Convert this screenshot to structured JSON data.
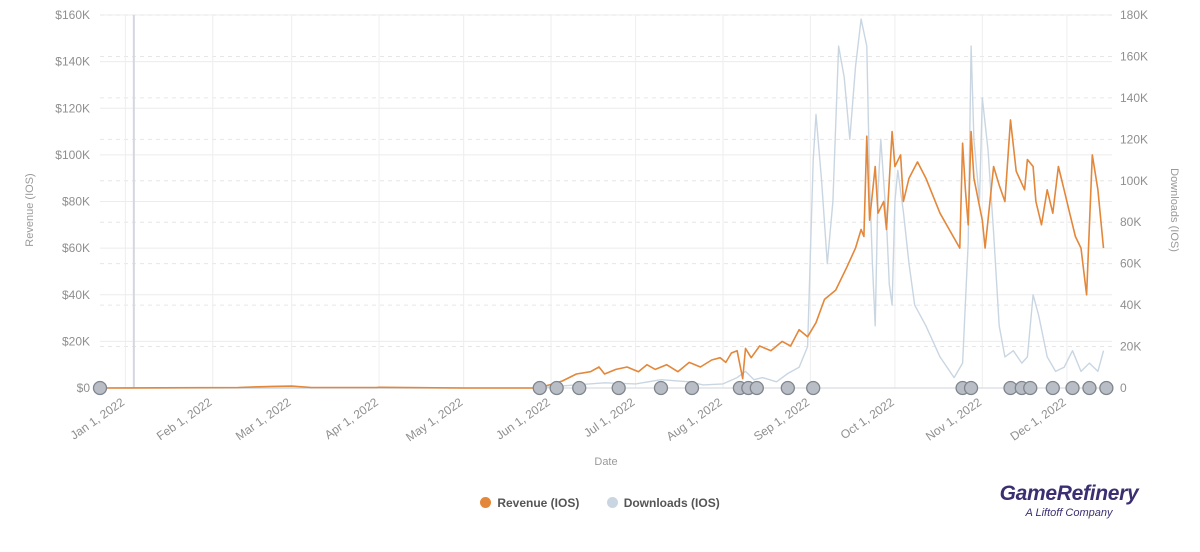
{
  "chart_data": {
    "type": "line",
    "xlabel": "Date",
    "ylabel_left": "Revenue (IOS)",
    "ylabel_right": "Downloads (IOS)",
    "x_domain": [
      "2021-12-23",
      "2022-12-17"
    ],
    "x_ticks": [
      {
        "date": "2022-01-01",
        "label": "Jan 1, 2022"
      },
      {
        "date": "2022-02-01",
        "label": "Feb 1, 2022"
      },
      {
        "date": "2022-03-01",
        "label": "Mar 1, 2022"
      },
      {
        "date": "2022-04-01",
        "label": "Apr 1, 2022"
      },
      {
        "date": "2022-05-01",
        "label": "May 1, 2022"
      },
      {
        "date": "2022-06-01",
        "label": "Jun 1, 2022"
      },
      {
        "date": "2022-07-01",
        "label": "Jul 1, 2022"
      },
      {
        "date": "2022-08-01",
        "label": "Aug 1, 2022"
      },
      {
        "date": "2022-09-01",
        "label": "Sep 1, 2022"
      },
      {
        "date": "2022-10-01",
        "label": "Oct 1, 2022"
      },
      {
        "date": "2022-11-01",
        "label": "Nov 1, 2022"
      },
      {
        "date": "2022-12-01",
        "label": "Dec 1, 2022"
      }
    ],
    "y_left": {
      "range": [
        0,
        160000
      ],
      "ticks": [
        0,
        20000,
        40000,
        60000,
        80000,
        100000,
        120000,
        140000,
        160000
      ],
      "labels": [
        "$0",
        "$20K",
        "$40K",
        "$60K",
        "$80K",
        "$100K",
        "$120K",
        "$140K",
        "$160K"
      ]
    },
    "y_right": {
      "range": [
        0,
        180000
      ],
      "ticks": [
        0,
        20000,
        40000,
        60000,
        80000,
        100000,
        120000,
        140000,
        160000,
        180000
      ],
      "labels": [
        "0",
        "20K",
        "40K",
        "60K",
        "80K",
        "100K",
        "120K",
        "140K",
        "160K",
        "180K"
      ]
    },
    "grid": true,
    "legend_position": "bottom-center",
    "series": [
      {
        "name": "Revenue (IOS)",
        "axis": "left",
        "color": "#e3873a",
        "points": [
          [
            "2021-12-23",
            0
          ],
          [
            "2022-02-10",
            200
          ],
          [
            "2022-02-22",
            700
          ],
          [
            "2022-03-01",
            800
          ],
          [
            "2022-03-08",
            200
          ],
          [
            "2022-03-31",
            200
          ],
          [
            "2022-04-01",
            300
          ],
          [
            "2022-05-01",
            0
          ],
          [
            "2022-05-27",
            0
          ],
          [
            "2022-06-01",
            1500
          ],
          [
            "2022-06-05",
            3000
          ],
          [
            "2022-06-10",
            6000
          ],
          [
            "2022-06-15",
            7000
          ],
          [
            "2022-06-18",
            9000
          ],
          [
            "2022-06-20",
            6000
          ],
          [
            "2022-06-24",
            8000
          ],
          [
            "2022-06-28",
            9000
          ],
          [
            "2022-07-02",
            7000
          ],
          [
            "2022-07-05",
            10000
          ],
          [
            "2022-07-08",
            8000
          ],
          [
            "2022-07-12",
            10000
          ],
          [
            "2022-07-16",
            7000
          ],
          [
            "2022-07-20",
            11000
          ],
          [
            "2022-07-24",
            9000
          ],
          [
            "2022-07-28",
            12000
          ],
          [
            "2022-07-31",
            13000
          ],
          [
            "2022-08-02",
            11000
          ],
          [
            "2022-08-04",
            15000
          ],
          [
            "2022-08-06",
            16000
          ],
          [
            "2022-08-08",
            4000
          ],
          [
            "2022-08-09",
            17000
          ],
          [
            "2022-08-11",
            13000
          ],
          [
            "2022-08-14",
            18000
          ],
          [
            "2022-08-18",
            16000
          ],
          [
            "2022-08-22",
            20000
          ],
          [
            "2022-08-25",
            18000
          ],
          [
            "2022-08-28",
            25000
          ],
          [
            "2022-08-31",
            22000
          ],
          [
            "2022-09-03",
            28000
          ],
          [
            "2022-09-06",
            38000
          ],
          [
            "2022-09-10",
            42000
          ],
          [
            "2022-09-14",
            52000
          ],
          [
            "2022-09-17",
            60000
          ],
          [
            "2022-09-19",
            68000
          ],
          [
            "2022-09-20",
            65000
          ],
          [
            "2022-09-21",
            108000
          ],
          [
            "2022-09-22",
            72000
          ],
          [
            "2022-09-24",
            95000
          ],
          [
            "2022-09-25",
            75000
          ],
          [
            "2022-09-27",
            80000
          ],
          [
            "2022-09-28",
            68000
          ],
          [
            "2022-09-30",
            110000
          ],
          [
            "2022-10-01",
            95000
          ],
          [
            "2022-10-03",
            100000
          ],
          [
            "2022-10-04",
            80000
          ],
          [
            "2022-10-06",
            90000
          ],
          [
            "2022-10-09",
            97000
          ],
          [
            "2022-10-12",
            90000
          ],
          [
            "2022-10-17",
            75000
          ],
          [
            "2022-10-24",
            60000
          ],
          [
            "2022-10-25",
            105000
          ],
          [
            "2022-10-26",
            85000
          ],
          [
            "2022-10-27",
            70000
          ],
          [
            "2022-10-28",
            110000
          ],
          [
            "2022-10-29",
            90000
          ],
          [
            "2022-11-01",
            72000
          ],
          [
            "2022-11-02",
            60000
          ],
          [
            "2022-11-05",
            95000
          ],
          [
            "2022-11-07",
            87000
          ],
          [
            "2022-11-09",
            80000
          ],
          [
            "2022-11-11",
            115000
          ],
          [
            "2022-11-13",
            93000
          ],
          [
            "2022-11-16",
            85000
          ],
          [
            "2022-11-17",
            98000
          ],
          [
            "2022-11-19",
            95000
          ],
          [
            "2022-11-20",
            80000
          ],
          [
            "2022-11-22",
            70000
          ],
          [
            "2022-11-24",
            85000
          ],
          [
            "2022-11-26",
            75000
          ],
          [
            "2022-11-28",
            95000
          ],
          [
            "2022-11-30",
            85000
          ],
          [
            "2022-12-02",
            75000
          ],
          [
            "2022-12-04",
            65000
          ],
          [
            "2022-12-06",
            60000
          ],
          [
            "2022-12-08",
            40000
          ],
          [
            "2022-12-10",
            100000
          ],
          [
            "2022-12-12",
            85000
          ],
          [
            "2022-12-14",
            60000
          ]
        ]
      },
      {
        "name": "Downloads (IOS)",
        "axis": "right",
        "color": "#c9d6e2",
        "points": [
          [
            "2021-12-23",
            0
          ],
          [
            "2022-05-27",
            0
          ],
          [
            "2022-06-05",
            1000
          ],
          [
            "2022-06-20",
            2500
          ],
          [
            "2022-07-01",
            2000
          ],
          [
            "2022-07-10",
            4000
          ],
          [
            "2022-07-20",
            3000
          ],
          [
            "2022-07-25",
            1500
          ],
          [
            "2022-08-01",
            2000
          ],
          [
            "2022-08-06",
            5000
          ],
          [
            "2022-08-09",
            8000
          ],
          [
            "2022-08-12",
            4000
          ],
          [
            "2022-08-15",
            5000
          ],
          [
            "2022-08-20",
            3000
          ],
          [
            "2022-08-24",
            7000
          ],
          [
            "2022-08-28",
            10000
          ],
          [
            "2022-08-31",
            20000
          ],
          [
            "2022-09-02",
            110000
          ],
          [
            "2022-09-03",
            132000
          ],
          [
            "2022-09-05",
            100000
          ],
          [
            "2022-09-07",
            60000
          ],
          [
            "2022-09-09",
            90000
          ],
          [
            "2022-09-11",
            165000
          ],
          [
            "2022-09-13",
            150000
          ],
          [
            "2022-09-15",
            120000
          ],
          [
            "2022-09-17",
            155000
          ],
          [
            "2022-09-19",
            178000
          ],
          [
            "2022-09-21",
            165000
          ],
          [
            "2022-09-22",
            100000
          ],
          [
            "2022-09-23",
            60000
          ],
          [
            "2022-09-24",
            30000
          ],
          [
            "2022-09-25",
            95000
          ],
          [
            "2022-09-26",
            120000
          ],
          [
            "2022-09-28",
            80000
          ],
          [
            "2022-09-29",
            50000
          ],
          [
            "2022-09-30",
            40000
          ],
          [
            "2022-10-01",
            90000
          ],
          [
            "2022-10-02",
            105000
          ],
          [
            "2022-10-04",
            85000
          ],
          [
            "2022-10-06",
            60000
          ],
          [
            "2022-10-08",
            40000
          ],
          [
            "2022-10-12",
            30000
          ],
          [
            "2022-10-17",
            15000
          ],
          [
            "2022-10-22",
            5000
          ],
          [
            "2022-10-25",
            12000
          ],
          [
            "2022-10-27",
            70000
          ],
          [
            "2022-10-28",
            165000
          ],
          [
            "2022-10-29",
            120000
          ],
          [
            "2022-10-31",
            90000
          ],
          [
            "2022-11-01",
            140000
          ],
          [
            "2022-11-03",
            115000
          ],
          [
            "2022-11-05",
            75000
          ],
          [
            "2022-11-07",
            30000
          ],
          [
            "2022-11-09",
            15000
          ],
          [
            "2022-11-12",
            18000
          ],
          [
            "2022-11-15",
            12000
          ],
          [
            "2022-11-17",
            15000
          ],
          [
            "2022-11-19",
            45000
          ],
          [
            "2022-11-21",
            35000
          ],
          [
            "2022-11-24",
            15000
          ],
          [
            "2022-11-27",
            8000
          ],
          [
            "2022-11-30",
            10000
          ],
          [
            "2022-12-03",
            18000
          ],
          [
            "2022-12-06",
            8000
          ],
          [
            "2022-12-09",
            12000
          ],
          [
            "2022-12-12",
            8000
          ],
          [
            "2022-12-14",
            18000
          ]
        ]
      }
    ],
    "event_markers": [
      "2021-12-23",
      "2022-05-28",
      "2022-06-03",
      "2022-06-11",
      "2022-06-25",
      "2022-07-10",
      "2022-07-21",
      "2022-08-07",
      "2022-08-10",
      "2022-08-13",
      "2022-08-24",
      "2022-09-02",
      "2022-10-25",
      "2022-10-28",
      "2022-11-11",
      "2022-11-15",
      "2022-11-18",
      "2022-11-26",
      "2022-12-03",
      "2022-12-09",
      "2022-12-15"
    ]
  },
  "brand": {
    "name": "GameRefinery",
    "tagline": "A Liftoff Company"
  }
}
